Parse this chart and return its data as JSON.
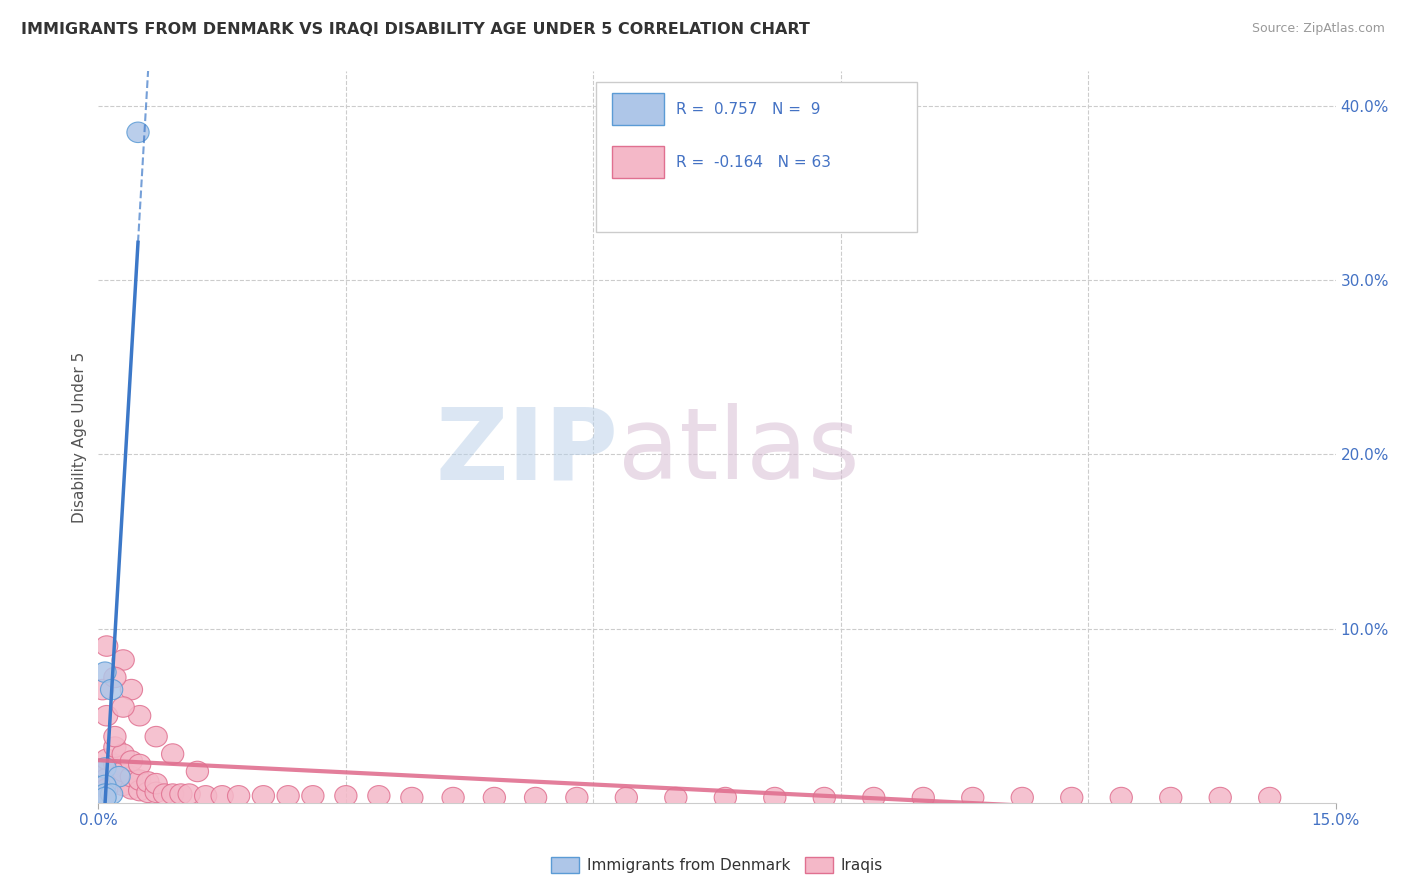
{
  "title": "IMMIGRANTS FROM DENMARK VS IRAQI DISABILITY AGE UNDER 5 CORRELATION CHART",
  "source": "Source: ZipAtlas.com",
  "ylabel": "Disability Age Under 5",
  "xlim": [
    0.0,
    0.15
  ],
  "ylim": [
    0.0,
    0.42
  ],
  "xtick_positions": [
    0.0,
    0.15
  ],
  "xtick_labels": [
    "0.0%",
    "15.0%"
  ],
  "grid_xticks": [
    0.03,
    0.06,
    0.09,
    0.12
  ],
  "yticks_right": [
    0.1,
    0.2,
    0.3,
    0.4
  ],
  "ytick_labels_right": [
    "10.0%",
    "20.0%",
    "30.0%",
    "40.0%"
  ],
  "legend_denmark": "Immigrants from Denmark",
  "legend_iraqis": "Iraqis",
  "R_denmark": 0.757,
  "N_denmark": 9,
  "R_iraqis": -0.164,
  "N_iraqis": 63,
  "denmark_color": "#aec6e8",
  "denmark_edge_color": "#5b9bd5",
  "iraqis_color": "#f4b8c8",
  "iraqis_edge_color": "#e07090",
  "denmark_trend_color": "#3c78c8",
  "iraqis_trend_color": "#e07090",
  "denmark_scatter_x": [
    0.0048,
    0.0008,
    0.0016,
    0.0008,
    0.0025,
    0.0008,
    0.0008,
    0.0016,
    0.0008
  ],
  "denmark_scatter_y": [
    0.385,
    0.075,
    0.065,
    0.02,
    0.015,
    0.01,
    0.005,
    0.005,
    0.003
  ],
  "iraqis_scatter_x": [
    0.0005,
    0.001,
    0.001,
    0.002,
    0.002,
    0.002,
    0.003,
    0.003,
    0.003,
    0.004,
    0.004,
    0.004,
    0.005,
    0.005,
    0.005,
    0.006,
    0.006,
    0.007,
    0.007,
    0.008,
    0.009,
    0.01,
    0.011,
    0.013,
    0.015,
    0.017,
    0.02,
    0.023,
    0.026,
    0.03,
    0.034,
    0.038,
    0.043,
    0.048,
    0.053,
    0.058,
    0.064,
    0.07,
    0.076,
    0.082,
    0.088,
    0.094,
    0.1,
    0.106,
    0.112,
    0.118,
    0.124,
    0.13,
    0.136,
    0.142,
    0.0005,
    0.001,
    0.002,
    0.003,
    0.004,
    0.005,
    0.007,
    0.009,
    0.012,
    0.001,
    0.002,
    0.003,
    0.001
  ],
  "iraqis_scatter_y": [
    0.018,
    0.014,
    0.025,
    0.012,
    0.022,
    0.032,
    0.01,
    0.018,
    0.028,
    0.008,
    0.015,
    0.024,
    0.007,
    0.013,
    0.022,
    0.006,
    0.012,
    0.006,
    0.011,
    0.005,
    0.005,
    0.005,
    0.005,
    0.004,
    0.004,
    0.004,
    0.004,
    0.004,
    0.004,
    0.004,
    0.004,
    0.003,
    0.003,
    0.003,
    0.003,
    0.003,
    0.003,
    0.003,
    0.003,
    0.003,
    0.003,
    0.003,
    0.003,
    0.003,
    0.003,
    0.003,
    0.003,
    0.003,
    0.003,
    0.003,
    0.065,
    0.05,
    0.038,
    0.082,
    0.065,
    0.05,
    0.038,
    0.028,
    0.018,
    0.09,
    0.072,
    0.055,
    0.008
  ],
  "background_color": "#ffffff",
  "grid_color": "#cccccc",
  "tick_color": "#4472c4"
}
